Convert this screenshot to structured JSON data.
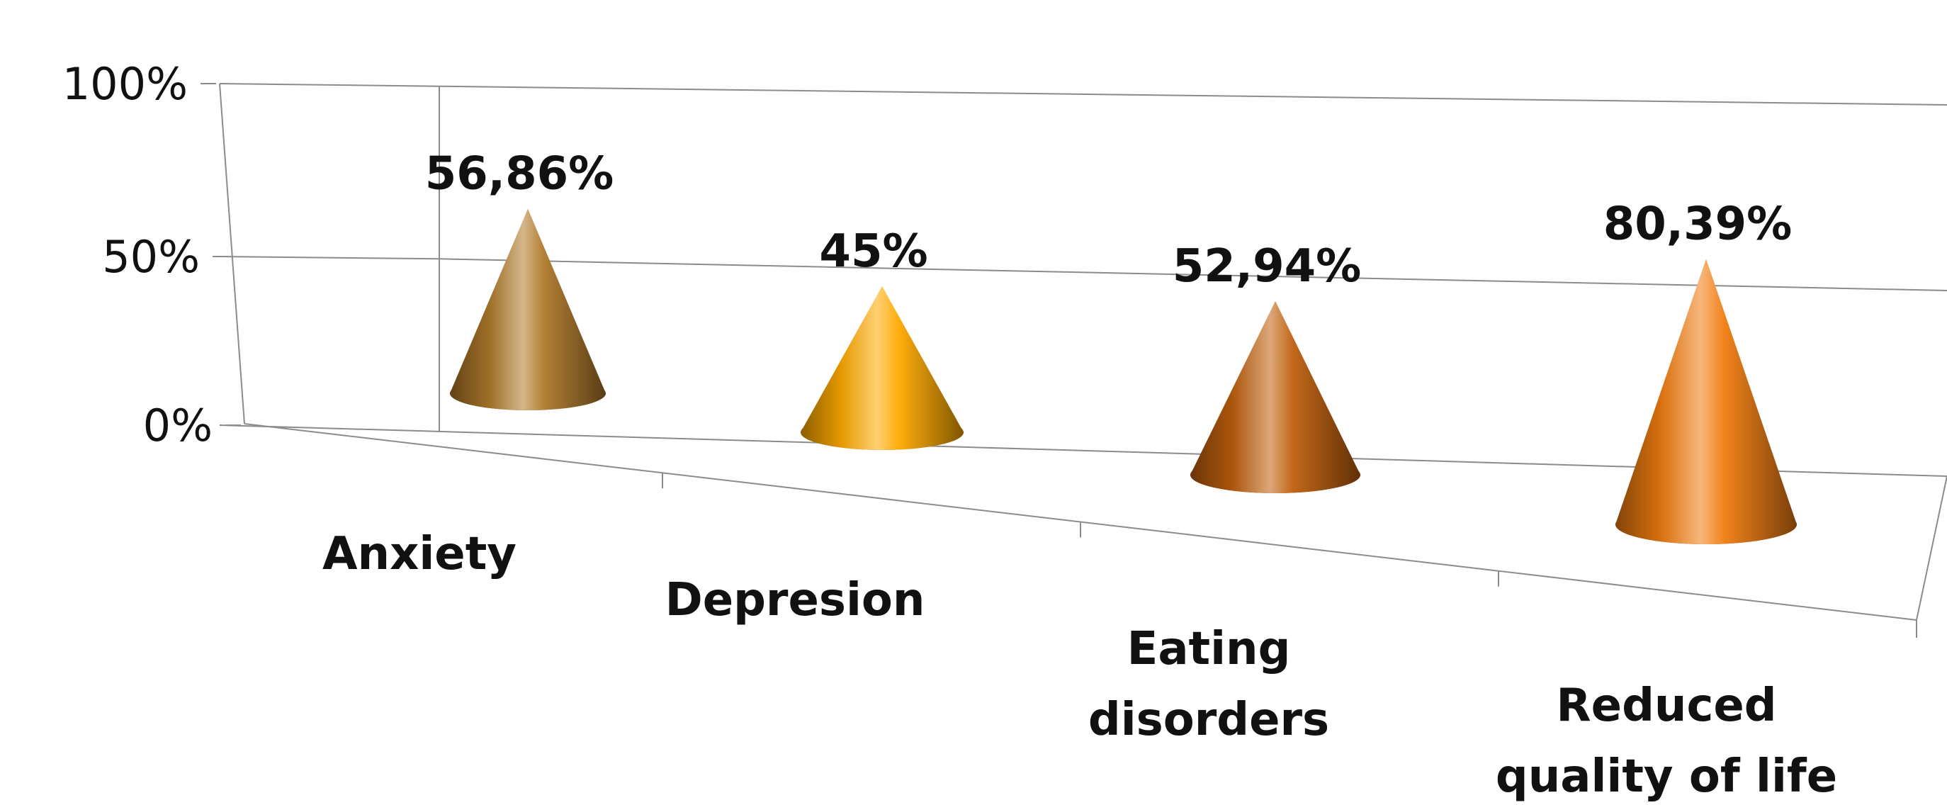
{
  "chart_data": {
    "type": "bar",
    "shape": "cone-3d",
    "title": "",
    "xlabel": "",
    "ylabel": "",
    "ylim": [
      0,
      100
    ],
    "y_ticks": [
      "0%",
      "50%",
      "100%"
    ],
    "categories": [
      [
        "Anxiety"
      ],
      [
        "Depresion"
      ],
      [
        "Eating",
        "disorders"
      ],
      [
        "Reduced",
        "quality of life"
      ]
    ],
    "values": [
      56.86,
      45,
      52.94,
      80.39
    ],
    "value_labels": [
      "56,86%",
      "45%",
      "52,94%",
      "80,39%"
    ],
    "colors": [
      "#b07a2a",
      "#ffaa00",
      "#c0600e",
      "#f07c10"
    ],
    "grid": true,
    "legend": "none"
  }
}
